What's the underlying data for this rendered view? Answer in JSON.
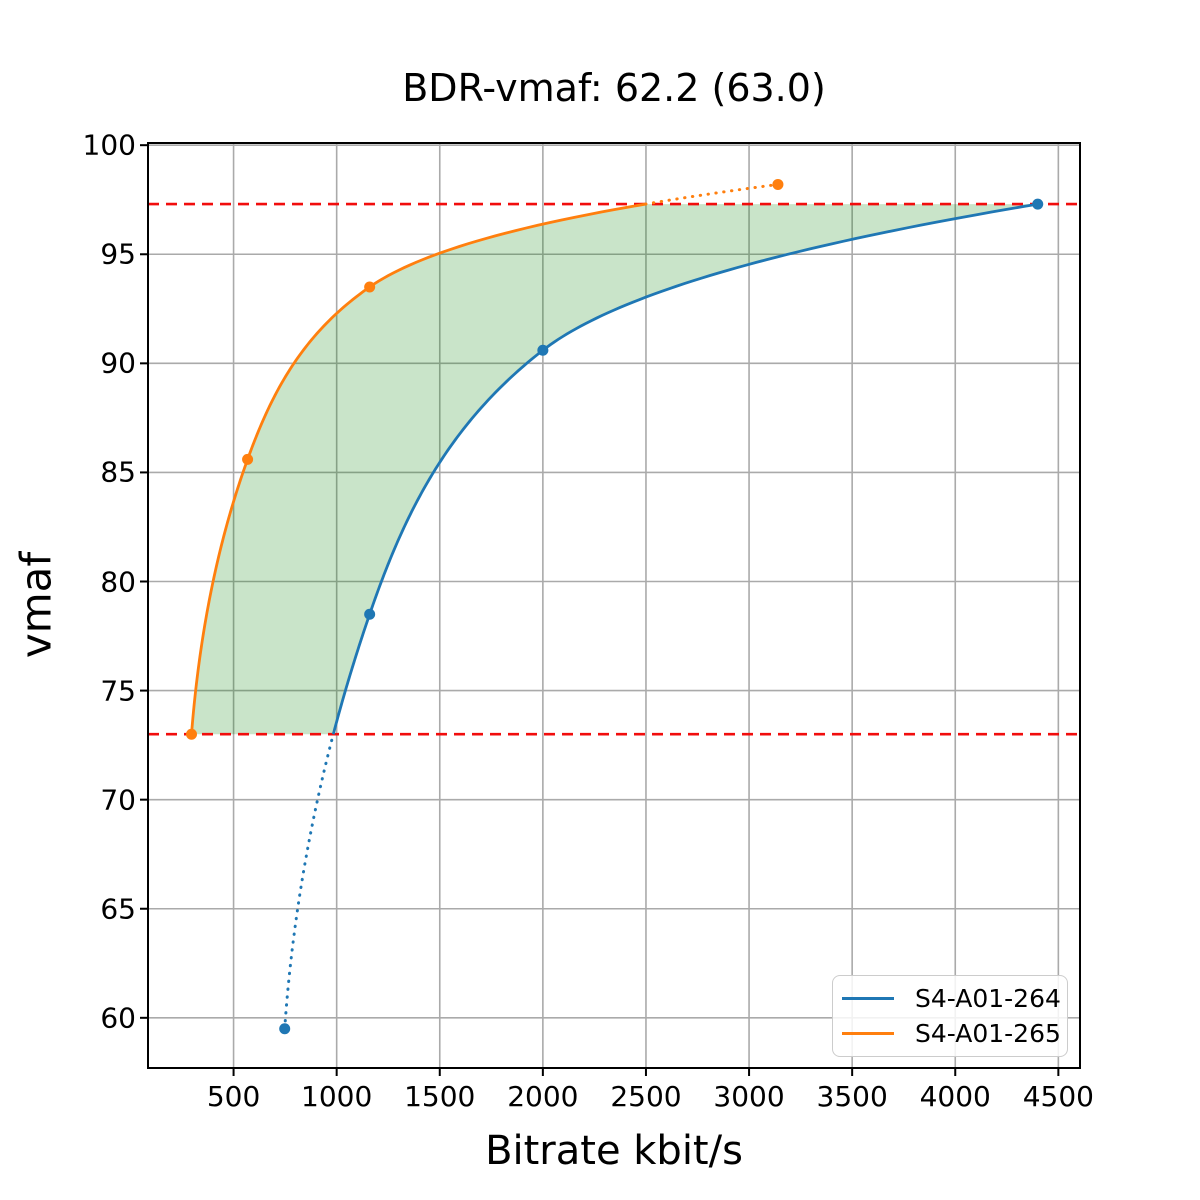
{
  "chart_data": {
    "type": "line",
    "title": "BDR-vmaf: 62.2 (63.0)",
    "bdr_value": 62.2,
    "bdr_value_secondary": 63.0,
    "xlabel": "Bitrate kbit/s",
    "ylabel": "vmaf",
    "xlim": [
      85,
      4605
    ],
    "ylim": [
      57.7,
      100.1
    ],
    "xticks": [
      500,
      1000,
      1500,
      2000,
      2500,
      3000,
      3500,
      4000,
      4500
    ],
    "yticks": [
      60,
      65,
      70,
      75,
      80,
      85,
      90,
      95,
      100
    ],
    "grid": true,
    "grid_color": "#aaaaaa",
    "interpolation": "pchip-on-log-bitrate",
    "overlap_range": [
      73.0,
      97.3
    ],
    "overlap_lines": {
      "style": "dashed",
      "color": "#f10d0d",
      "values": [
        73.0,
        97.3
      ]
    },
    "shaded_region": {
      "color": "#008000",
      "opacity": 0.21,
      "between_series_for_vmaf_range": [
        73.0,
        97.3
      ]
    },
    "series": [
      {
        "name": "S4-A01-264",
        "color": "#1f77b4",
        "points_bitrate_vmaf": [
          [
            748,
            59.5
          ],
          [
            1160,
            78.5
          ],
          [
            2000,
            90.6
          ],
          [
            4400,
            97.3
          ]
        ],
        "dotted_extrapolation_vmaf_range": [
          57.7,
          73.0
        ]
      },
      {
        "name": "S4-A01-265",
        "color": "#ff7f0e",
        "points_bitrate_vmaf": [
          [
            296,
            73.0
          ],
          [
            568,
            85.6
          ],
          [
            1160,
            93.5
          ],
          [
            3140,
            98.2
          ]
        ],
        "dotted_extrapolation_vmaf_range": [
          97.3,
          100.1
        ]
      }
    ],
    "legend": {
      "position": "lower right",
      "entries": [
        "S4-A01-264",
        "S4-A01-265"
      ]
    }
  }
}
